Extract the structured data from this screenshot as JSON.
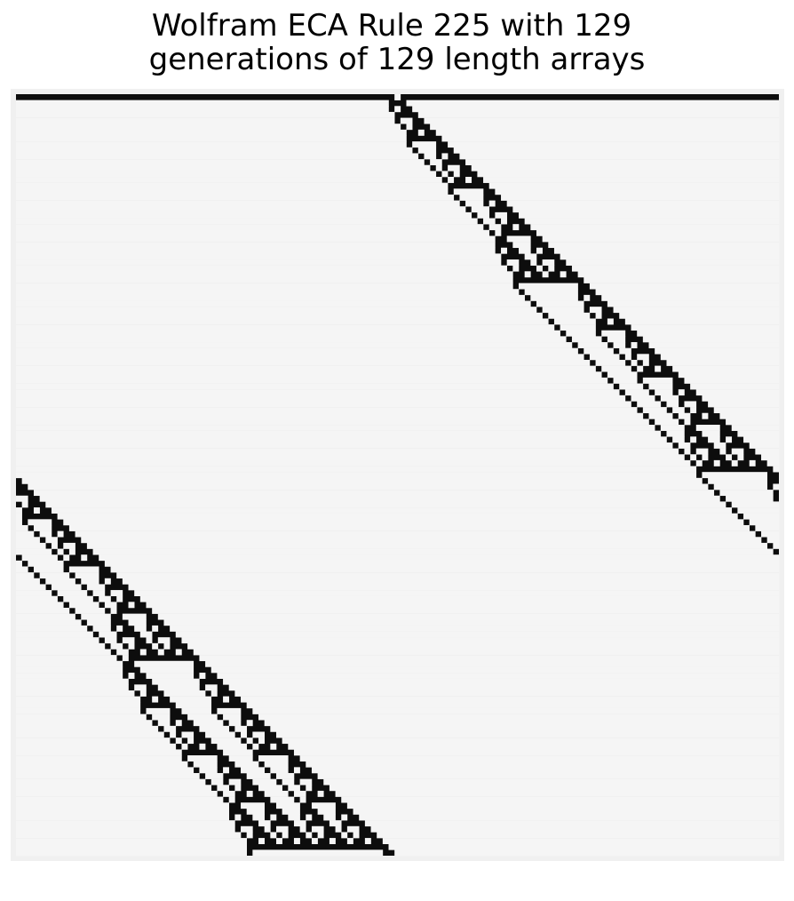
{
  "chart_data": {
    "type": "heatmap",
    "title_lines": [
      "Wolfram ECA Rule 225 with 129",
      "generations of 129 length arrays"
    ],
    "rule": 225,
    "generations": 129,
    "width": 129,
    "initial_live_cell": 64,
    "boundary": "periodic",
    "xlabel": "",
    "ylabel": "",
    "grid": false,
    "colors": {
      "dead": "#0d0d0d",
      "live": "#f5f5f5",
      "frame": "#f0f0f0",
      "background": "#ffffff"
    }
  }
}
